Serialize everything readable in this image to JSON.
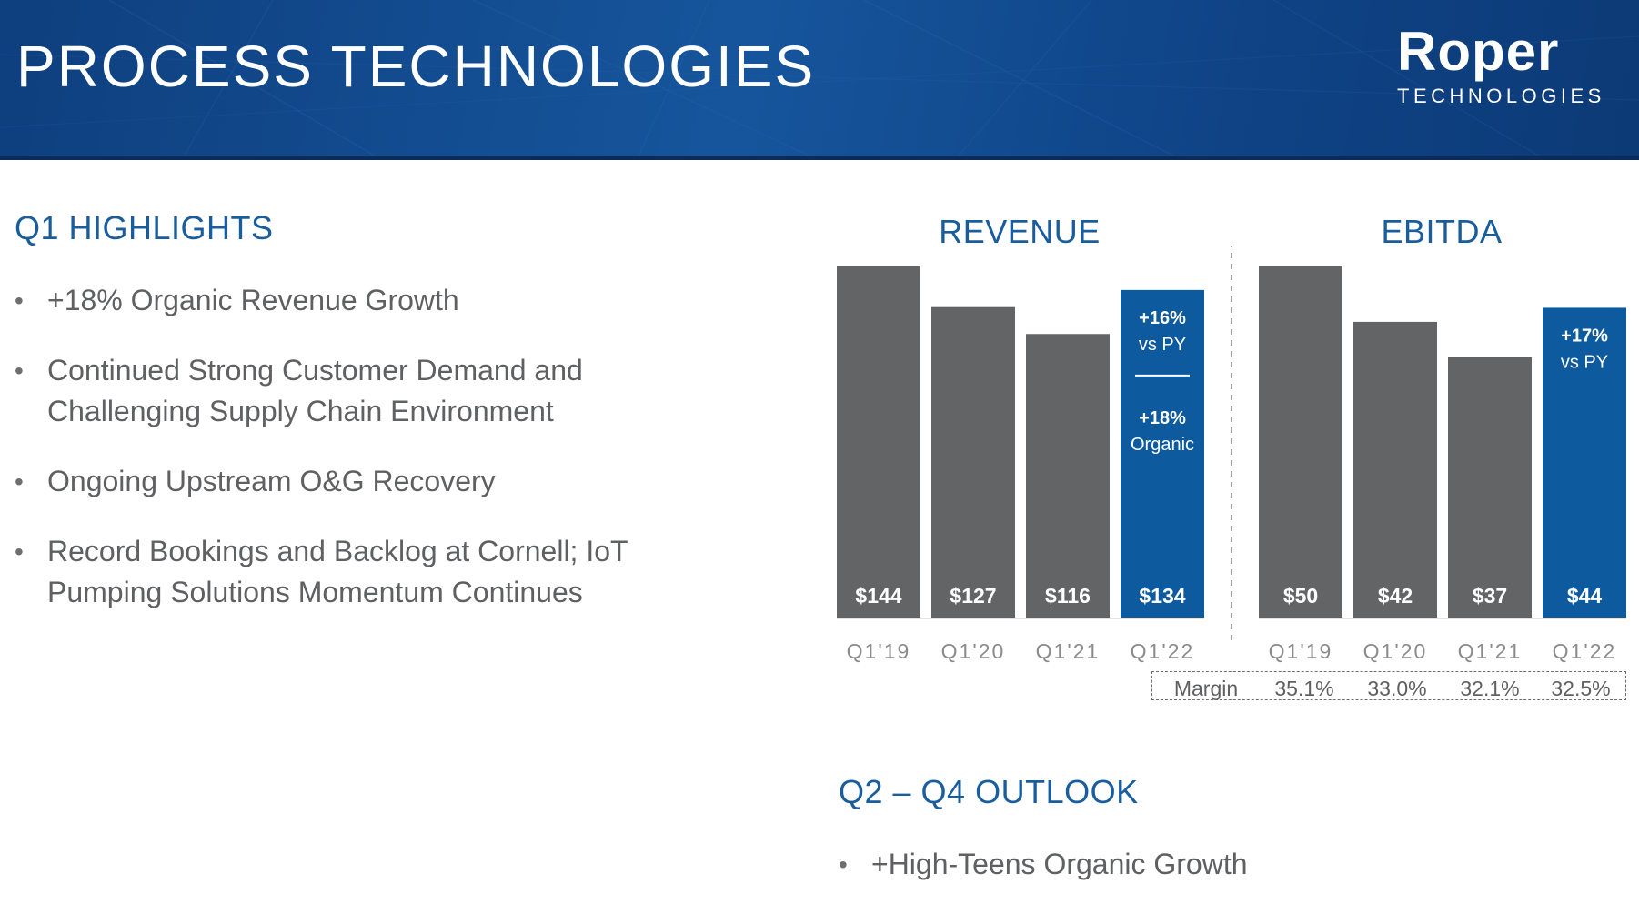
{
  "header": {
    "title": "PROCESS TECHNOLOGIES",
    "logo": {
      "name": "Roper",
      "subtitle": "TECHNOLOGIES"
    }
  },
  "highlights": {
    "title": "Q1 HIGHLIGHTS",
    "items": [
      {
        "line1": "+18% Organic Revenue Growth",
        "line2": ""
      },
      {
        "line1": "Continued Strong Customer Demand and",
        "line2": "Challenging Supply Chain Environment"
      },
      {
        "line1": "Ongoing Upstream O&G Recovery",
        "line2": ""
      },
      {
        "line1": "Record Bookings and Backlog at Cornell; IoT",
        "line2": "Pumping Solutions Momentum Continues"
      }
    ]
  },
  "outlook": {
    "title": "Q2 – Q4 OUTLOOK",
    "items": [
      "+High-Teens Organic Growth"
    ]
  },
  "colors": {
    "bar": "#636466",
    "highlight_bar": "#0d5a9e",
    "accent_text": "#1a5d9c",
    "header": "#14509a"
  },
  "chart_data": [
    {
      "type": "bar",
      "title": "REVENUE",
      "categories": [
        "Q1'19",
        "Q1'20",
        "Q1'21",
        "Q1'22"
      ],
      "values": [
        144,
        127,
        116,
        134
      ],
      "value_labels": [
        "$144",
        "$127",
        "$116",
        "$134"
      ],
      "highlight_index": 3,
      "annotations": [
        "+16%",
        "vs PY",
        "+18%",
        "Organic"
      ],
      "ylim": [
        0,
        144
      ]
    },
    {
      "type": "bar",
      "title": "EBITDA",
      "categories": [
        "Q1'19",
        "Q1'20",
        "Q1'21",
        "Q1'22"
      ],
      "values": [
        50,
        42,
        37,
        44
      ],
      "value_labels": [
        "$50",
        "$42",
        "$37",
        "$44"
      ],
      "highlight_index": 3,
      "annotations": [
        "+17%",
        "vs PY"
      ],
      "margin_label": "Margin",
      "margins": [
        "35.1%",
        "33.0%",
        "32.1%",
        "32.5%"
      ],
      "ylim": [
        0,
        50
      ]
    }
  ]
}
